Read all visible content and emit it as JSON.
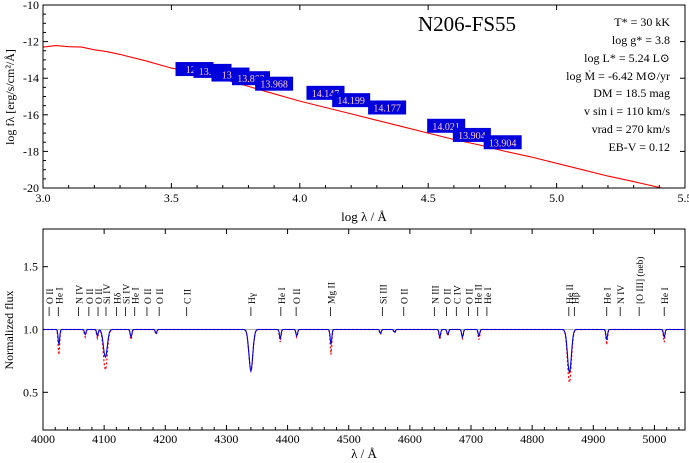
{
  "colors": {
    "sed_model": "#ff0000",
    "obs_box": "#0000dd",
    "obs_text": "#ffcccc",
    "spec_obs": "#0000dd",
    "spec_model": "#ff0000",
    "continuum": "#999999"
  },
  "chart_data": [
    {
      "type": "line",
      "title": "N206-FS55",
      "xlabel": "log λ / Å",
      "ylabel": "log fλ [erg/s/cm²/Å]",
      "xlim": [
        3.0,
        5.5
      ],
      "ylim": [
        -20,
        -10
      ],
      "xticks": [
        3.0,
        3.5,
        4.0,
        4.5,
        5.0,
        5.5
      ],
      "xtick_labels": [
        "3.0",
        "3.5",
        "4.0",
        "4.5",
        "5.0",
        "5.5"
      ],
      "yticks": [
        -20,
        -18,
        -16,
        -14,
        -12,
        -10
      ],
      "ytick_labels": [
        "-20",
        "-18",
        "-16",
        "-14",
        "-12",
        "-10"
      ],
      "series": [
        {
          "x": [
            3.0,
            3.05,
            3.1,
            3.15,
            3.2,
            3.25,
            3.3,
            3.4,
            3.5,
            3.55,
            3.6,
            3.7,
            3.8,
            3.9,
            4.0,
            4.1,
            4.2,
            4.3,
            4.4,
            4.5,
            4.6,
            4.7,
            4.8,
            4.9,
            5.0,
            5.1,
            5.2,
            5.3,
            5.41
          ],
          "y": [
            -12.3,
            -12.22,
            -12.28,
            -12.3,
            -12.45,
            -12.55,
            -12.7,
            -13.05,
            -13.45,
            -13.58,
            -13.75,
            -14.05,
            -14.45,
            -14.85,
            -15.25,
            -15.6,
            -15.95,
            -16.3,
            -16.65,
            -17.0,
            -17.35,
            -17.65,
            -18.0,
            -18.3,
            -18.65,
            -19.0,
            -19.35,
            -19.65,
            -20.0
          ]
        }
      ],
      "photometry": [
        {
          "x": 3.59,
          "y": -13.5,
          "label": "12.6"
        },
        {
          "x": 3.66,
          "y": -13.6,
          "label": "13.680"
        },
        {
          "x": 3.73,
          "y": -13.8,
          "label": "13.5"
        },
        {
          "x": 3.81,
          "y": -14.0,
          "label": "13.803"
        },
        {
          "x": 3.9,
          "y": -14.3,
          "label": "13.968"
        },
        {
          "x": 4.1,
          "y": -14.8,
          "label": "14.147"
        },
        {
          "x": 4.2,
          "y": -15.2,
          "label": "14.199"
        },
        {
          "x": 4.34,
          "y": -15.6,
          "label": "14.177"
        },
        {
          "x": 4.57,
          "y": -16.6,
          "label": "14.021"
        },
        {
          "x": 4.67,
          "y": -17.1,
          "label": "13.904"
        },
        {
          "x": 4.79,
          "y": -17.5,
          "label": "13.904"
        }
      ],
      "parameters": [
        {
          "label": "T* = 30 kK"
        },
        {
          "label": "log g* = 3.8"
        },
        {
          "label": "log L* = 5.24 L⊙"
        },
        {
          "label": "log Ṁ = -6.42 M⊙/yr"
        },
        {
          "label": "DM = 18.5 mag"
        },
        {
          "label": "v sin i = 110 km/s"
        },
        {
          "label": "vrad = 270 km/s"
        },
        {
          "label": "EB-V = 0.12"
        }
      ]
    },
    {
      "type": "line",
      "xlabel": "λ / Å",
      "ylabel": "Normalized flux",
      "xlim": [
        4000,
        5050
      ],
      "ylim": [
        0.2,
        1.8
      ],
      "xticks": [
        4000,
        4100,
        4200,
        4300,
        4400,
        4500,
        4600,
        4700,
        4800,
        4900,
        5000
      ],
      "xtick_labels": [
        "4000",
        "4100",
        "4200",
        "4300",
        "4400",
        "4500",
        "4600",
        "4700",
        "4800",
        "4900",
        "5000"
      ],
      "yticks": [
        0.5,
        1.0,
        1.5
      ],
      "ytick_labels": [
        "0.5",
        "1.0",
        "1.5"
      ],
      "continuum": 1.0,
      "lines": [
        {
          "x": 4026,
          "depth_obs": 0.12,
          "depth_model": 0.2
        },
        {
          "x": 4069,
          "depth_obs": 0.04,
          "depth_model": 0.06
        },
        {
          "x": 4089,
          "depth_obs": 0.05,
          "depth_model": 0.07
        },
        {
          "x": 4102,
          "depth_obs": 0.22,
          "depth_model": 0.32
        },
        {
          "x": 4144,
          "depth_obs": 0.06,
          "depth_model": 0.08
        },
        {
          "x": 4185,
          "depth_obs": 0.03,
          "depth_model": 0.04
        },
        {
          "x": 4340,
          "depth_obs": 0.33,
          "depth_model": 0.33
        },
        {
          "x": 4388,
          "depth_obs": 0.07,
          "depth_model": 0.1
        },
        {
          "x": 4415,
          "depth_obs": 0.05,
          "depth_model": 0.06
        },
        {
          "x": 4471,
          "depth_obs": 0.12,
          "depth_model": 0.2
        },
        {
          "x": 4552,
          "depth_obs": 0.03,
          "depth_model": 0.04
        },
        {
          "x": 4575,
          "depth_obs": 0.02,
          "depth_model": 0.03
        },
        {
          "x": 4649,
          "depth_obs": 0.06,
          "depth_model": 0.08
        },
        {
          "x": 4662,
          "depth_obs": 0.04,
          "depth_model": 0.05
        },
        {
          "x": 4686,
          "depth_obs": 0.06,
          "depth_model": 0.07
        },
        {
          "x": 4713,
          "depth_obs": 0.05,
          "depth_model": 0.08
        },
        {
          "x": 4861,
          "depth_obs": 0.34,
          "depth_model": 0.42
        },
        {
          "x": 4922,
          "depth_obs": 0.08,
          "depth_model": 0.12
        },
        {
          "x": 5016,
          "depth_obs": 0.06,
          "depth_model": 0.1
        }
      ],
      "line_ids": [
        {
          "x": 4010,
          "label": "O II"
        },
        {
          "x": 4025,
          "label": "He I"
        },
        {
          "x": 4058,
          "label": "N IV"
        },
        {
          "x": 4075,
          "label": "O II"
        },
        {
          "x": 4090,
          "label": "O II"
        },
        {
          "x": 4103,
          "label": "Si IV"
        },
        {
          "x": 4120,
          "label": "Hδ"
        },
        {
          "x": 4135,
          "label": "Si IV"
        },
        {
          "x": 4150,
          "label": "He I"
        },
        {
          "x": 4170,
          "label": "O II"
        },
        {
          "x": 4190,
          "label": "O II"
        },
        {
          "x": 4235,
          "label": "C II"
        },
        {
          "x": 4340,
          "label": "Hγ"
        },
        {
          "x": 4389,
          "label": "He I"
        },
        {
          "x": 4414,
          "label": "O II"
        },
        {
          "x": 4470,
          "label": "Mg II"
        },
        {
          "x": 4555,
          "label": "Si III"
        },
        {
          "x": 4590,
          "label": "O II"
        },
        {
          "x": 4640,
          "label": "N III"
        },
        {
          "x": 4660,
          "label": "O II"
        },
        {
          "x": 4676,
          "label": "C IV"
        },
        {
          "x": 4696,
          "label": "O II"
        },
        {
          "x": 4711,
          "label": "He II"
        },
        {
          "x": 4726,
          "label": "He I"
        },
        {
          "x": 4860,
          "label": "He II"
        },
        {
          "x": 4869,
          "label": "Hβ"
        },
        {
          "x": 4922,
          "label": "He I"
        },
        {
          "x": 4944,
          "label": "N IV"
        },
        {
          "x": 4975,
          "label": "[O III] (neb)"
        },
        {
          "x": 5016,
          "label": "He I"
        }
      ]
    }
  ]
}
